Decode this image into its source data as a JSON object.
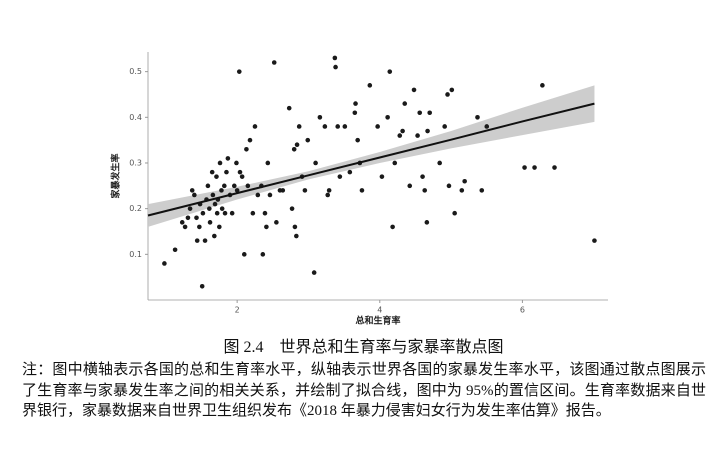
{
  "chart_data": {
    "type": "scatter",
    "xlabel": "总和生育率",
    "ylabel": "家暴发生率",
    "xlim": [
      0.75,
      7.2
    ],
    "ylim": [
      0,
      0.543
    ],
    "xticks": [
      2,
      4,
      6
    ],
    "yticks": [
      0.1,
      0.2,
      0.3,
      0.4,
      0.5
    ],
    "color": "#1a1a1a",
    "x": [
      0.98,
      1.13,
      1.23,
      1.27,
      1.31,
      1.34,
      1.37,
      1.4,
      1.43,
      1.44,
      1.47,
      1.48,
      1.51,
      1.52,
      1.55,
      1.57,
      1.59,
      1.61,
      1.62,
      1.65,
      1.66,
      1.68,
      1.69,
      1.71,
      1.72,
      1.73,
      1.75,
      1.76,
      1.78,
      1.79,
      1.82,
      1.83,
      1.85,
      1.87,
      1.9,
      1.93,
      1.96,
      1.99,
      2.0,
      2.03,
      2.04,
      2.07,
      2.1,
      2.13,
      2.15,
      2.18,
      2.22,
      2.25,
      2.29,
      2.34,
      2.36,
      2.39,
      2.41,
      2.43,
      2.46,
      2.52,
      2.55,
      2.6,
      2.64,
      2.73,
      2.77,
      2.8,
      2.81,
      2.83,
      2.84,
      2.87,
      2.91,
      2.95,
      2.99,
      3.08,
      3.1,
      3.16,
      3.23,
      3.27,
      3.29,
      3.37,
      3.38,
      3.41,
      3.44,
      3.51,
      3.58,
      3.65,
      3.66,
      3.69,
      3.72,
      3.75,
      3.86,
      3.97,
      4.03,
      4.11,
      4.14,
      4.18,
      4.21,
      4.28,
      4.32,
      4.35,
      4.42,
      4.48,
      4.53,
      4.56,
      4.6,
      4.63,
      4.66,
      4.67,
      4.7,
      4.84,
      4.91,
      4.95,
      4.97,
      5.01,
      5.05,
      5.15,
      5.19,
      5.37,
      5.43,
      5.5,
      6.03,
      6.17,
      6.28,
      6.45,
      7.01
    ],
    "y": [
      0.08,
      0.11,
      0.17,
      0.16,
      0.18,
      0.2,
      0.24,
      0.23,
      0.18,
      0.13,
      0.16,
      0.21,
      0.03,
      0.19,
      0.13,
      0.22,
      0.25,
      0.2,
      0.17,
      0.28,
      0.23,
      0.14,
      0.21,
      0.27,
      0.19,
      0.22,
      0.16,
      0.3,
      0.24,
      0.2,
      0.25,
      0.19,
      0.28,
      0.31,
      0.23,
      0.19,
      0.25,
      0.3,
      0.24,
      0.5,
      0.28,
      0.27,
      0.1,
      0.33,
      0.25,
      0.35,
      0.19,
      0.38,
      0.23,
      0.25,
      0.1,
      0.19,
      0.16,
      0.3,
      0.23,
      0.52,
      0.17,
      0.24,
      0.24,
      0.42,
      0.2,
      0.33,
      0.16,
      0.14,
      0.34,
      0.38,
      0.27,
      0.24,
      0.35,
      0.06,
      0.3,
      0.4,
      0.38,
      0.23,
      0.24,
      0.53,
      0.51,
      0.38,
      0.27,
      0.38,
      0.28,
      0.41,
      0.43,
      0.35,
      0.3,
      0.24,
      0.47,
      0.38,
      0.27,
      0.4,
      0.5,
      0.16,
      0.3,
      0.36,
      0.37,
      0.43,
      0.25,
      0.46,
      0.36,
      0.41,
      0.27,
      0.24,
      0.17,
      0.37,
      0.41,
      0.3,
      0.38,
      0.45,
      0.25,
      0.46,
      0.19,
      0.24,
      0.26,
      0.4,
      0.24,
      0.38,
      0.29,
      0.29,
      0.47,
      0.29,
      0.13
    ],
    "fit": {
      "x": [
        0.75,
        2,
        3,
        4,
        5,
        6,
        7.01
      ],
      "y": [
        0.185,
        0.234,
        0.273,
        0.312,
        0.351,
        0.391,
        0.43
      ],
      "lower": [
        0.16,
        0.22,
        0.264,
        0.3,
        0.332,
        0.361,
        0.39
      ],
      "upper": [
        0.21,
        0.248,
        0.282,
        0.324,
        0.37,
        0.421,
        0.47
      ]
    }
  },
  "caption": "图 2.4　世界总和生育率与家暴率散点图",
  "note": "注：图中横轴表示各国的总和生育率水平，纵轴表示世界各国的家暴发生率水平，该图通过散点图展示了生育率与家暴发生率之间的相关关系，并绘制了拟合线，图中为 95%的置信区间。生育率数据来自世界银行，家暴数据来自世界卫生组织发布《2018 年暴力侵害妇女行为发生率估算》报告。"
}
